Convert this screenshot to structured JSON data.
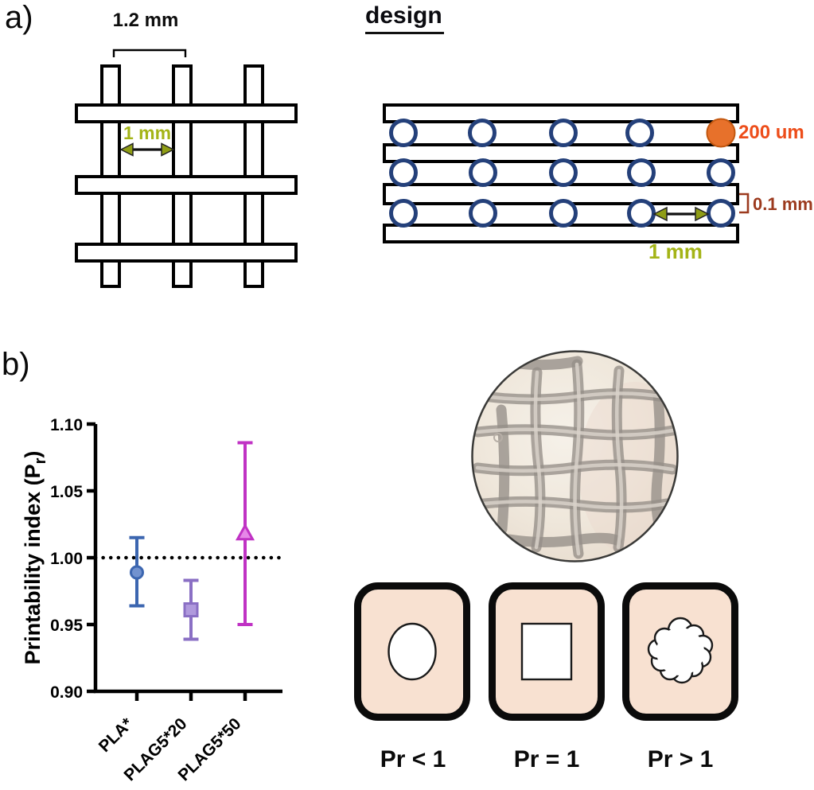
{
  "panel_a": {
    "label": "a)",
    "title": "design",
    "top_view": {
      "spacing_label": "1.2 mm",
      "gap_label": "1 mm"
    },
    "side_view": {
      "fiber_label": "200 um",
      "layer_label": "0.1 mm",
      "gap_label": "1 mm"
    }
  },
  "panel_b": {
    "label": "b)",
    "legend_cards": [
      {
        "shape": "circle",
        "label": "Pr < 1"
      },
      {
        "shape": "square",
        "label": "Pr = 1"
      },
      {
        "shape": "cloud",
        "label": "Pr > 1"
      }
    ]
  },
  "colors": {
    "navy_circle": "#24407a",
    "orange_fiber": "#e7712b",
    "orange_text": "#ed4d1a",
    "maroon_text": "#9c3a1e",
    "green_text": "#a4b417",
    "olive_arrow": "#8f9d15",
    "peach_card": "#f8e1d1",
    "blue_series": "#3c66b0",
    "purple_series": "#8a6fc4",
    "magenta_series": "#c032c4"
  },
  "chart_data": {
    "type": "scatter",
    "title": "",
    "ylabel": "Printability index (Pr)",
    "ylabel_parts": {
      "pre": "Printability index (P",
      "sub": "r",
      "post": ")"
    },
    "xlabel": "",
    "categories": [
      "PLA*",
      "PLAG5*20",
      "PLAG5*50"
    ],
    "points": [
      {
        "category": "PLA*",
        "mean": 0.989,
        "ci_low": 0.964,
        "ci_high": 1.015,
        "marker": "circle",
        "line_color": "#3c66b0",
        "fill_color": "#7292cf"
      },
      {
        "category": "PLAG5*20",
        "mean": 0.961,
        "ci_low": 0.939,
        "ci_high": 0.983,
        "marker": "square",
        "line_color": "#8a6fc4",
        "fill_color": "#b09add"
      },
      {
        "category": "PLAG5*50",
        "mean": 1.018,
        "ci_low": 0.95,
        "ci_high": 1.086,
        "marker": "triangle",
        "line_color": "#c032c4",
        "fill_color": "#e687e8"
      }
    ],
    "ylim": [
      0.9,
      1.1
    ],
    "yticks": [
      "1.10",
      "1.05",
      "1.00",
      "0.95",
      "0.90"
    ],
    "reference_line": 1.0,
    "grid": false,
    "legend": "none"
  }
}
